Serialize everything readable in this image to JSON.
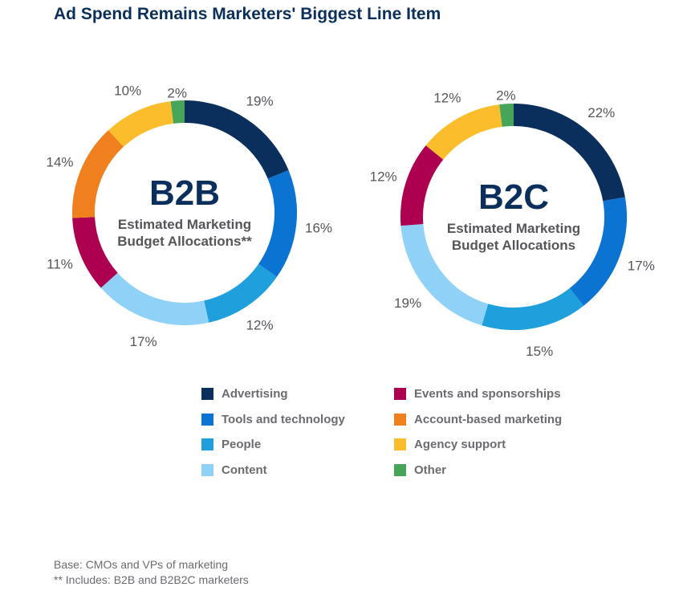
{
  "title": "Ad Spend Remains Marketers' Biggest Line Item",
  "chart_data": [
    {
      "type": "pie",
      "donut": true,
      "center_title": "B2B",
      "center_subtitle": [
        "Estimated Marketing",
        "Budget Allocations**"
      ],
      "categories": [
        "Advertising",
        "Tools and technology",
        "People",
        "Content",
        "Events and sponsorships",
        "Account-based marketing",
        "Agency support",
        "Other"
      ],
      "values": [
        19,
        16,
        12,
        17,
        11,
        14,
        10,
        2
      ],
      "labels": [
        "19%",
        "16%",
        "12%",
        "17%",
        "11%",
        "14%",
        "10%",
        "2%"
      ]
    },
    {
      "type": "pie",
      "donut": true,
      "center_title": "B2C",
      "center_subtitle": [
        "Estimated Marketing",
        "Budget Allocations"
      ],
      "categories": [
        "Advertising",
        "Tools and technology",
        "People",
        "Content",
        "Events and sponsorships",
        "Account-based marketing",
        "Agency support",
        "Other"
      ],
      "values": [
        22,
        17,
        15,
        19,
        12,
        0,
        12,
        2
      ],
      "labels": [
        "22%",
        "17%",
        "15%",
        "19%",
        "12%",
        "",
        "12%",
        "2%"
      ]
    }
  ],
  "legend": [
    {
      "label": "Advertising",
      "color": "#0a2f5c"
    },
    {
      "label": "Tools and technology",
      "color": "#0b74d2"
    },
    {
      "label": "People",
      "color": "#1f9fdb"
    },
    {
      "label": "Content",
      "color": "#8fd1f7"
    },
    {
      "label": "Events and sponsorships",
      "color": "#ad0051"
    },
    {
      "label": "Account-based marketing",
      "color": "#f07f1d"
    },
    {
      "label": "Agency support",
      "color": "#fbbd2c"
    },
    {
      "label": "Other",
      "color": "#47a55a"
    }
  ],
  "footnotes": [
    "Base: CMOs and VPs of marketing",
    "** Includes: B2B and B2B2C marketers"
  ]
}
